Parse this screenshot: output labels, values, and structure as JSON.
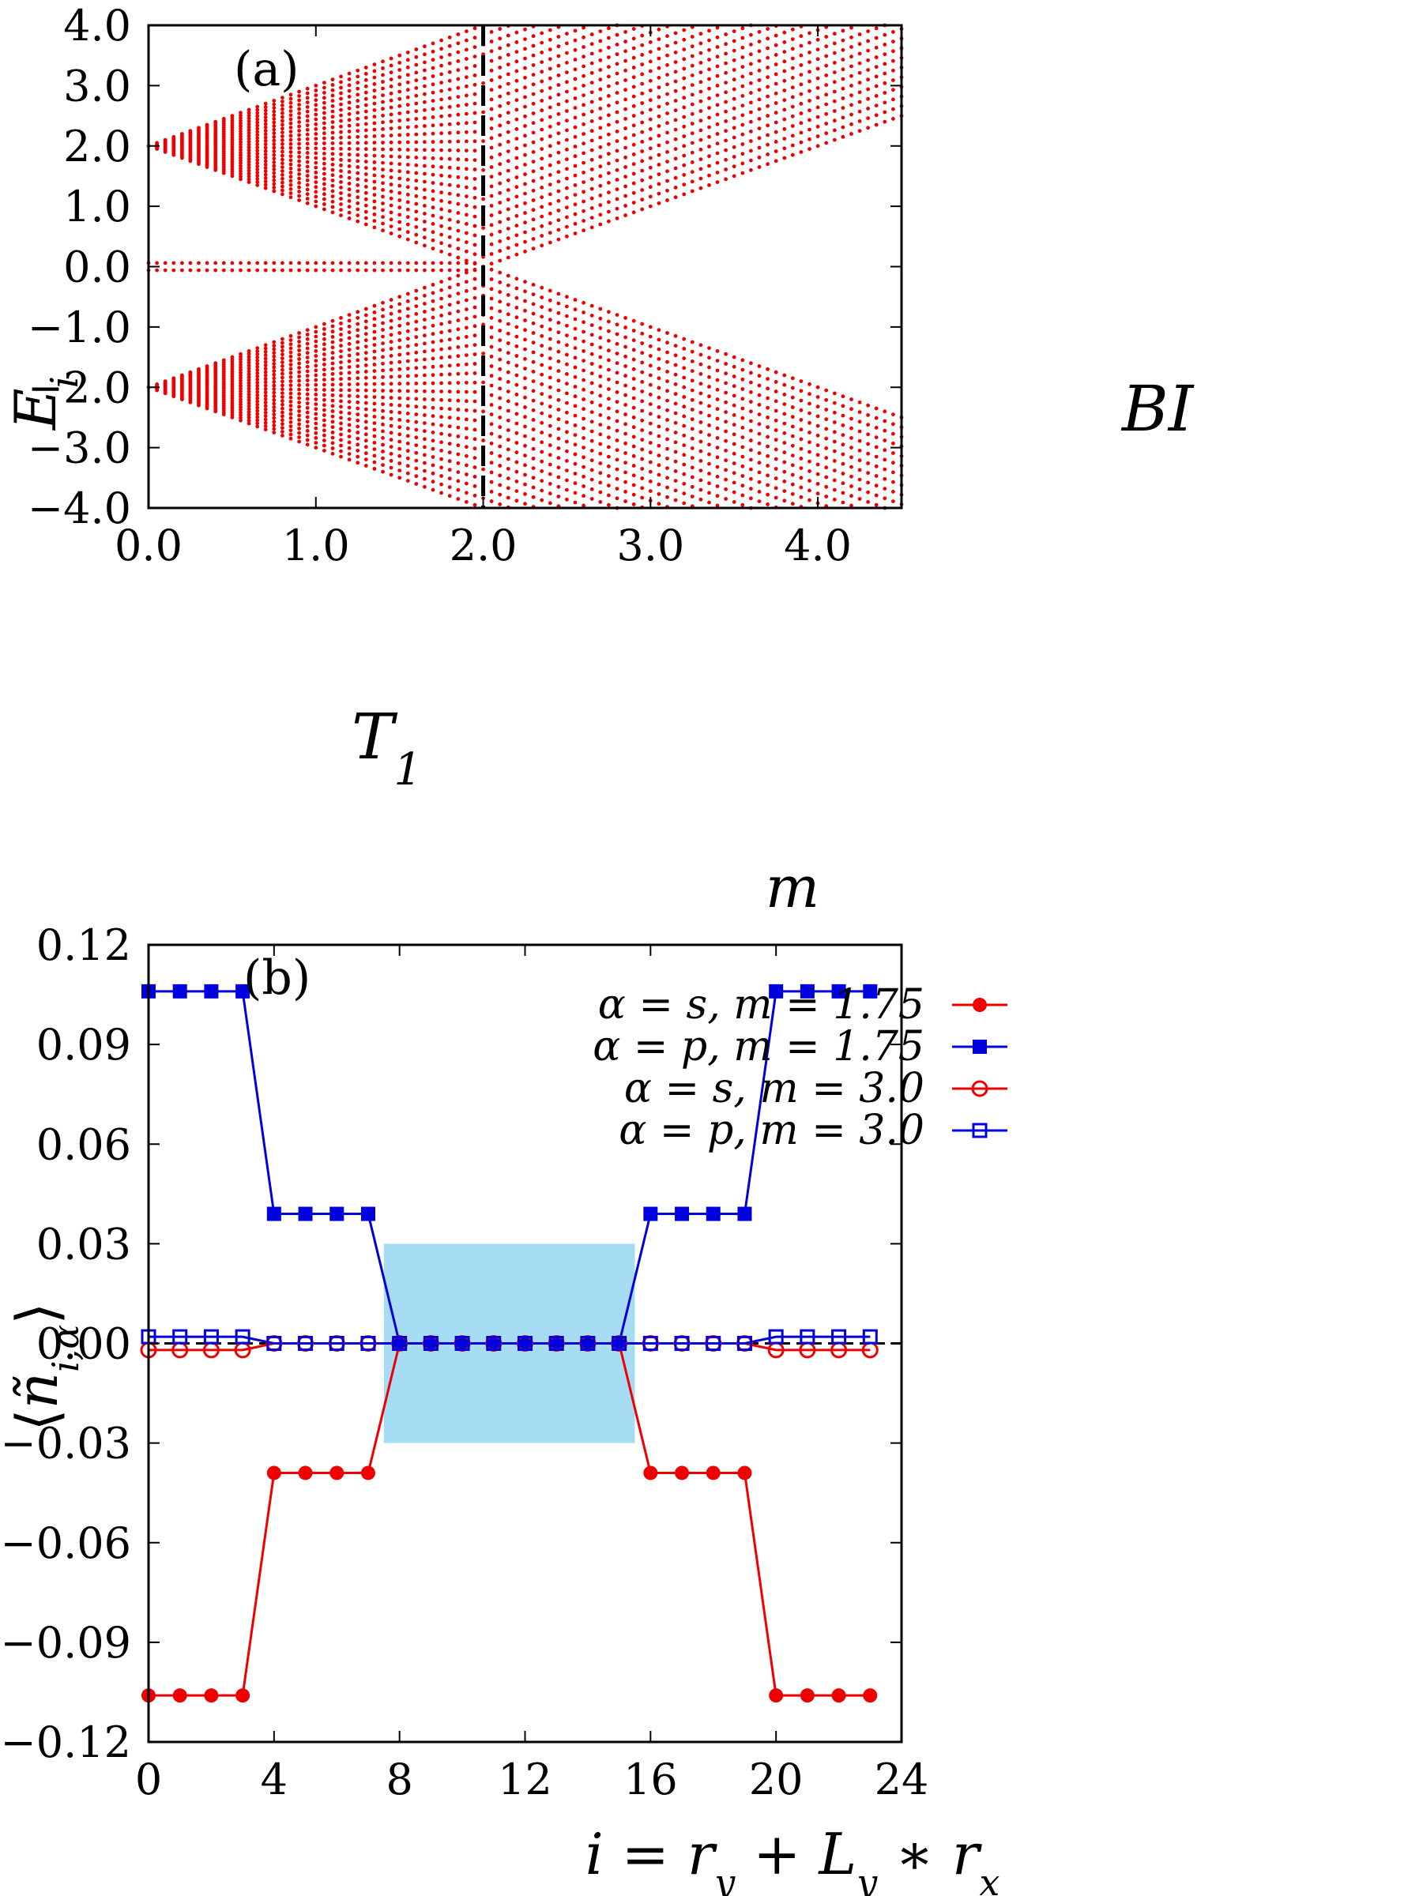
{
  "colors": {
    "red": "#ee0000",
    "blue": "#0000dd",
    "shade": "#a6ddf5",
    "axis": "#000000"
  },
  "chart_data": [
    {
      "type": "scatter",
      "panel_label": "(a)",
      "xlabel": "m",
      "ylabel": "E_i",
      "xlim": [
        0,
        4.5
      ],
      "ylim": [
        -4,
        4
      ],
      "x_ticks": [
        "0.0",
        "1.0",
        "2.0",
        "3.0",
        "4.0"
      ],
      "x_tick_values": [
        0,
        1,
        2,
        3,
        4
      ],
      "y_ticks": [
        "4.0",
        "3.0",
        "2.0",
        "1.0",
        "0.0",
        "−1.0",
        "−2.0",
        "−3.0",
        "−4.0"
      ],
      "y_tick_values": [
        4,
        3,
        2,
        1,
        0,
        -1,
        -2,
        -3,
        -4
      ],
      "region_labels": [
        "T₁",
        "BI"
      ],
      "vertical_line": {
        "x": 2.0,
        "style": "dashed"
      },
      "bands": {
        "m_start": 0.0,
        "m_end": 4.5,
        "m_step": 0.05,
        "edge_gap_close_at": 2.0,
        "outer_edge": "2 + m",
        "inner_gap": "|m - 2|",
        "marker_color": "red"
      }
    },
    {
      "type": "line",
      "panel_label": "(b)",
      "xlabel": "i = r_y + L_y ∗ r_x",
      "ylabel": "⟨ñ_{i,α}⟩",
      "xlim": [
        0,
        24
      ],
      "ylim": [
        -0.12,
        0.12
      ],
      "x_ticks": [
        "0",
        "4",
        "8",
        "12",
        "16",
        "20",
        "24"
      ],
      "x_tick_values": [
        0,
        4,
        8,
        12,
        16,
        20,
        24
      ],
      "y_ticks": [
        "0.12",
        "0.09",
        "0.06",
        "0.03",
        "0.00",
        "−0.03",
        "−0.06",
        "−0.09",
        "−0.12"
      ],
      "y_tick_values": [
        0.12,
        0.09,
        0.06,
        0.03,
        0.0,
        -0.03,
        -0.06,
        -0.09,
        -0.12
      ],
      "shaded_region": {
        "x": [
          7.5,
          15.5
        ],
        "y": [
          -0.03,
          0.03
        ]
      },
      "x": [
        0,
        1,
        2,
        3,
        4,
        5,
        6,
        7,
        8,
        9,
        10,
        11,
        12,
        13,
        14,
        15,
        16,
        17,
        18,
        19,
        20,
        21,
        22,
        23
      ],
      "series": [
        {
          "name": "α = s, m = 1.75",
          "color": "red",
          "marker": "filled-circle",
          "values": [
            -0.106,
            -0.106,
            -0.106,
            -0.106,
            -0.039,
            -0.039,
            -0.039,
            -0.039,
            0,
            0,
            0,
            0,
            0,
            0,
            0,
            0,
            -0.039,
            -0.039,
            -0.039,
            -0.039,
            -0.106,
            -0.106,
            -0.106,
            -0.106
          ]
        },
        {
          "name": "α = p, m = 1.75",
          "color": "blue",
          "marker": "filled-square",
          "values": [
            0.106,
            0.106,
            0.106,
            0.106,
            0.039,
            0.039,
            0.039,
            0.039,
            0,
            0,
            0,
            0,
            0,
            0,
            0,
            0,
            0.039,
            0.039,
            0.039,
            0.039,
            0.106,
            0.106,
            0.106,
            0.106
          ]
        },
        {
          "name": "α = s, m = 3.0",
          "color": "red",
          "marker": "open-circle",
          "values": [
            -0.002,
            -0.002,
            -0.002,
            -0.002,
            0,
            0,
            0,
            0,
            0,
            0,
            0,
            0,
            0,
            0,
            0,
            0,
            0,
            0,
            0,
            0,
            -0.002,
            -0.002,
            -0.002,
            -0.002
          ]
        },
        {
          "name": "α = p, m = 3.0",
          "color": "blue",
          "marker": "open-square",
          "values": [
            0.002,
            0.002,
            0.002,
            0.002,
            0,
            0,
            0,
            0,
            0,
            0,
            0,
            0,
            0,
            0,
            0,
            0,
            0,
            0,
            0,
            0,
            0.002,
            0.002,
            0.002,
            0.002
          ]
        }
      ],
      "legend_position": "top-center"
    }
  ]
}
